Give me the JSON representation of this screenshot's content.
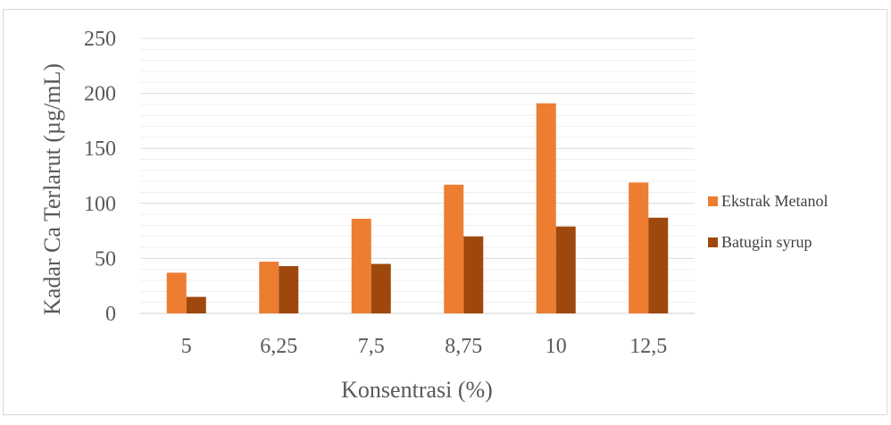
{
  "chart_data": {
    "type": "bar",
    "categories": [
      "5",
      "6,25",
      "7,5",
      "8,75",
      "10",
      "12,5"
    ],
    "series": [
      {
        "name": "Ekstrak Metanol",
        "color": "#ED7D31",
        "values": [
          37,
          47,
          86,
          117,
          191,
          119
        ]
      },
      {
        "name": "Batugin syrup",
        "color": "#9E480E",
        "values": [
          15,
          43,
          45,
          70,
          79,
          87
        ]
      }
    ],
    "ylim": [
      0,
      250
    ],
    "yticks": [
      "0",
      "50",
      "100",
      "150",
      "200",
      "250"
    ],
    "xlabel": "Konsentrasi (%)",
    "ylabel": "Kadar Ca Terlarut  (µg/mL)",
    "grid": true,
    "legend": "right"
  }
}
